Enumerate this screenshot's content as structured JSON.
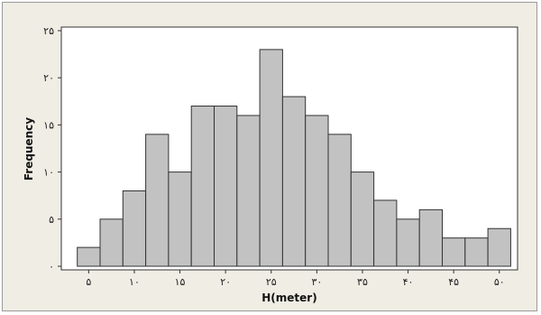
{
  "chart_data": {
    "type": "bar",
    "title": "",
    "xlabel": "H(meter)",
    "ylabel": "Frequency",
    "bin_width": 2.5,
    "x_start": 3.75,
    "bins_left_edges": [
      3.75,
      6.25,
      8.75,
      11.25,
      13.75,
      16.25,
      18.75,
      21.25,
      23.75,
      26.25,
      28.75,
      31.25,
      33.75,
      36.25,
      38.75,
      41.25,
      43.75,
      46.25,
      48.75
    ],
    "values": [
      2,
      5,
      8,
      14,
      10,
      17,
      17,
      16,
      23,
      18,
      16,
      14,
      10,
      7,
      5,
      6,
      3,
      3,
      4
    ],
    "x_ticks": [
      5,
      10,
      15,
      20,
      25,
      30,
      35,
      40,
      45,
      50
    ],
    "x_tick_labels": [
      "۵",
      "۱۰",
      "۱۵",
      "۲۰",
      "۲۵",
      "۳۰",
      "۳۵",
      "۴۰",
      "۴۵",
      "۵۰"
    ],
    "y_ticks": [
      0,
      5,
      10,
      15,
      20,
      25
    ],
    "y_tick_labels": [
      "۰",
      "۵",
      "۱۰",
      "۱۵",
      "۲۰",
      "۲۵"
    ],
    "xlim": [
      2.0,
      52.0
    ],
    "ylim": [
      0,
      25
    ],
    "grid": false,
    "colors": {
      "bar_fill": "#c2c2c2",
      "bar_stroke": "#333333",
      "background": "#efede4",
      "plot_background": "#ffffff"
    }
  }
}
